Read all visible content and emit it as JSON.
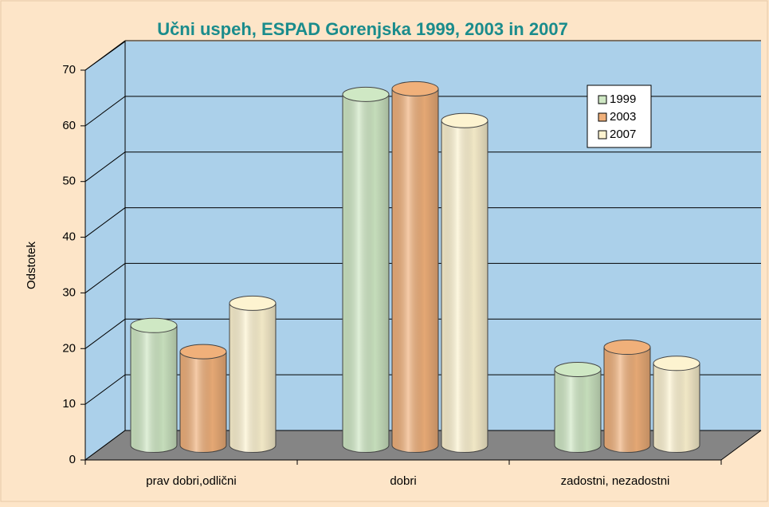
{
  "chart_data": {
    "type": "bar",
    "title": "Učni uspeh, ESPAD Gorenjska 1999, 2003 in 2007",
    "y_axis_label": "Odstotek",
    "categories": [
      "prav dobri,odlični",
      "dobri",
      "zadostni, nezadostni"
    ],
    "series": [
      {
        "name": "1999",
        "color": "#cfe8c4",
        "values": [
          21.5,
          63,
          13.6
        ]
      },
      {
        "name": "2003",
        "color": "#f0b07a",
        "values": [
          16.8,
          64,
          17.6
        ]
      },
      {
        "name": "2007",
        "color": "#fdf3d0",
        "values": [
          25.5,
          58.3,
          14.7
        ]
      }
    ],
    "ylim": [
      0,
      70
    ],
    "yticks": [
      0,
      10,
      20,
      30,
      40,
      50,
      60,
      70
    ],
    "grid": true,
    "legend": "upper right"
  }
}
